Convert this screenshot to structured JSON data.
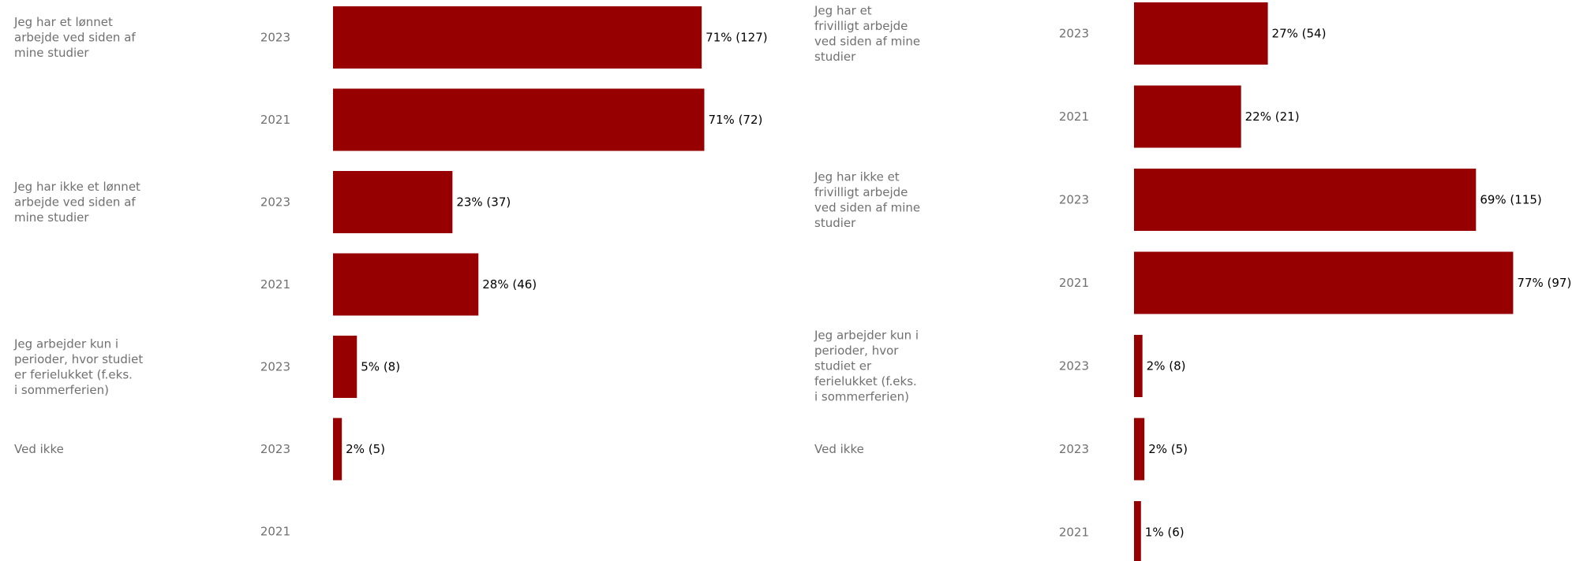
{
  "colors": {
    "bar": "#960000"
  },
  "chart_data": [
    {
      "type": "bar",
      "orientation": "horizontal",
      "xlim": [
        0,
        100
      ],
      "grid": false,
      "rows": [
        {
          "category": "Jeg har et lønnet arbejde ved siden af mine studier",
          "year": "2023",
          "value": 71,
          "label": "71% (127)"
        },
        {
          "category": "",
          "year": "2021",
          "value": 71.5,
          "label": "71% (72)"
        },
        {
          "category": "Jeg har ikke et lønnet arbejde ved siden af mine studier",
          "year": "2023",
          "value": 23,
          "label": "23% (37)"
        },
        {
          "category": "",
          "year": "2021",
          "value": 28,
          "label": "28% (46)"
        },
        {
          "category": "Jeg arbejder kun i perioder, hvor studiet er ferielukket (f.eks. i sommerferien)",
          "year": "2023",
          "value": 4.6,
          "label": "5% (8)"
        },
        {
          "category": "Ved ikke",
          "year": "2023",
          "value": 1.7,
          "label": "2% (5)"
        },
        {
          "category": "",
          "year": "2021",
          "value": 0,
          "label": ""
        }
      ]
    },
    {
      "type": "bar",
      "orientation": "horizontal",
      "xlim": [
        0,
        100
      ],
      "grid": false,
      "rows": [
        {
          "category": "Jeg har et frivilligt arbejde ved siden af mine studier",
          "year": "2023",
          "value": 27,
          "label": "27% (54)"
        },
        {
          "category": "",
          "year": "2021",
          "value": 21.6,
          "label": "22% (21)"
        },
        {
          "category": "Jeg har ikke et frivilligt arbejde ved siden af mine studier",
          "year": "2023",
          "value": 69,
          "label": "69% (115)"
        },
        {
          "category": "",
          "year": "2021",
          "value": 76.5,
          "label": "77% (97)"
        },
        {
          "category": "Jeg arbejder kun i perioder, hvor studiet er ferielukket (f.eks. i sommerferien)",
          "year": "2023",
          "value": 1.7,
          "label": "2% (8)"
        },
        {
          "category": "Ved ikke",
          "year": "2023",
          "value": 2.1,
          "label": "2% (5)"
        },
        {
          "category": "",
          "year": "2021",
          "value": 1.4,
          "label": "1% (6)"
        }
      ]
    }
  ]
}
